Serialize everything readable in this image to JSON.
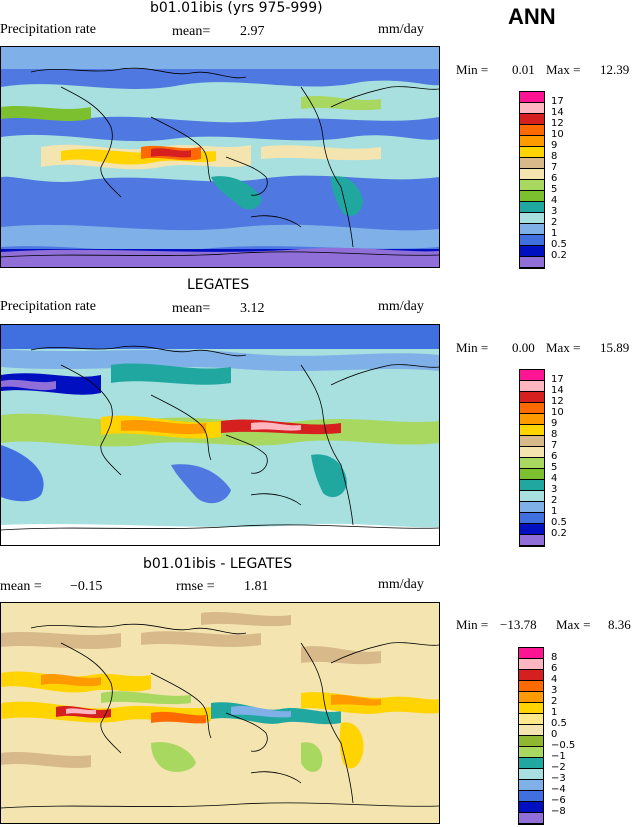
{
  "season": "ANN",
  "panels": [
    {
      "title": "b01.01ibis (yrs 975-999)",
      "left_label": "Precipitation rate",
      "mean_text": "mean=",
      "mean_value": "2.97",
      "units": "mm/day",
      "minmax": {
        "min_label": "Min =",
        "min": "0.01",
        "max_label": "Max =",
        "max": "12.39"
      },
      "colorbar": {
        "colors": [
          "#ff1493",
          "#ffb6c1",
          "#d62020",
          "#ff6a00",
          "#ff9a00",
          "#ffd400",
          "#d8b98a",
          "#f3e4b0",
          "#a8d860",
          "#7cc030",
          "#20a8a0",
          "#a8e0e0",
          "#80b0e8",
          "#4070e0",
          "#0010c0",
          "#9070d8"
        ],
        "labels": [
          "17",
          "14",
          "12",
          "10",
          "9",
          "8",
          "7",
          "6",
          "5",
          "4",
          "3",
          "2",
          "1",
          "0.5",
          "0.2"
        ]
      }
    },
    {
      "title": "LEGATES",
      "left_label": "Precipitation rate",
      "mean_text": "mean=",
      "mean_value": "3.12",
      "units": "mm/day",
      "minmax": {
        "min_label": "Min =",
        "min": "0.00",
        "max_label": "Max =",
        "max": "15.89"
      },
      "colorbar": {
        "colors": [
          "#ff1493",
          "#ffb6c1",
          "#d62020",
          "#ff6a00",
          "#ff9a00",
          "#ffd400",
          "#d8b98a",
          "#f3e4b0",
          "#a8d860",
          "#7cc030",
          "#20a8a0",
          "#a8e0e0",
          "#80b0e8",
          "#4070e0",
          "#0010c0",
          "#9070d8"
        ],
        "labels": [
          "17",
          "14",
          "12",
          "10",
          "9",
          "8",
          "7",
          "6",
          "5",
          "4",
          "3",
          "2",
          "1",
          "0.5",
          "0.2"
        ]
      }
    },
    {
      "title": "b01.01ibis - LEGATES",
      "left_label": "mean =",
      "mean_value": "−0.15",
      "rmse_label": "rmse =",
      "rmse_value": "1.81",
      "units": "mm/day",
      "minmax": {
        "min_label": "Min =",
        "min": "−13.78",
        "max_label": "Max =",
        "max": "8.36"
      },
      "colorbar": {
        "colors": [
          "#ff1493",
          "#ffb6c1",
          "#d62020",
          "#ff6a00",
          "#ff9a00",
          "#ffd400",
          "#ffe98a",
          "#f3e4b0",
          "#8fb830",
          "#a8d860",
          "#20a8a0",
          "#a8e0e0",
          "#80b0e8",
          "#4070e0",
          "#0010c0",
          "#9070d8"
        ],
        "labels": [
          "8",
          "6",
          "4",
          "3",
          "2",
          "1",
          "0.5",
          "0",
          "−0.5",
          "−1",
          "−2",
          "−3",
          "−4",
          "−6",
          "−8"
        ]
      }
    }
  ]
}
